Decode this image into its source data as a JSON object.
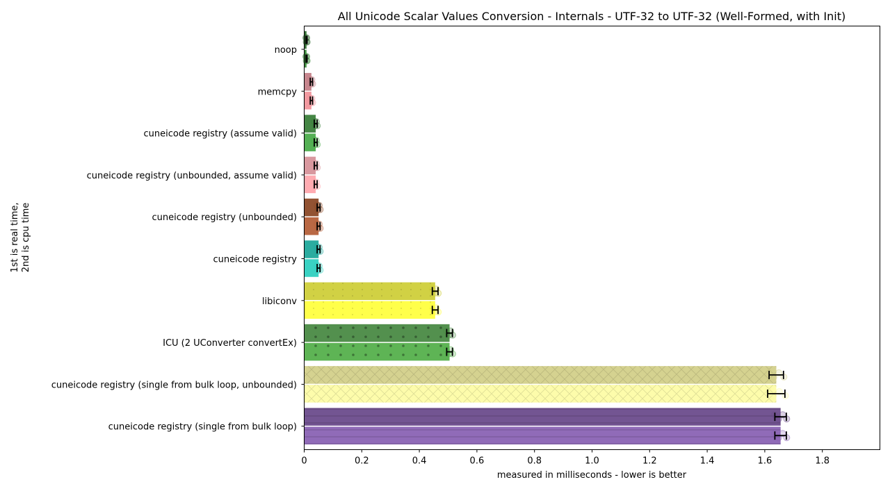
{
  "chart_data": {
    "type": "bar",
    "orientation": "horizontal",
    "title": "All Unicode Scalar Values Conversion - Internals - UTF-32 to UTF-32 (Well-Formed, with Init)",
    "xlabel": "measured in milliseconds - lower is better",
    "ylabel_line1": "1st is real time,",
    "ylabel_line2": "2nd is cpu time",
    "xlim": [
      0,
      2.0
    ],
    "xticks": [
      "0",
      "0.2",
      "0.4",
      "0.6",
      "0.8",
      "1.0",
      "1.2",
      "1.4",
      "1.6",
      "1.8"
    ],
    "grid": false,
    "series": [
      {
        "name": "real time",
        "values": [
          0.008,
          0.025,
          0.04,
          0.04,
          0.05,
          0.05,
          0.455,
          0.505,
          1.64,
          1.655
        ],
        "errors": [
          0.002,
          0.004,
          0.005,
          0.005,
          0.005,
          0.005,
          0.01,
          0.01,
          0.025,
          0.02
        ]
      },
      {
        "name": "cpu time",
        "values": [
          0.008,
          0.025,
          0.04,
          0.04,
          0.05,
          0.05,
          0.455,
          0.505,
          1.64,
          1.655
        ],
        "errors": [
          0.002,
          0.004,
          0.005,
          0.005,
          0.005,
          0.005,
          0.01,
          0.01,
          0.03,
          0.02
        ]
      }
    ],
    "categories": [
      {
        "label": "noop",
        "colors": [
          "#2e6b2e",
          "#3a8a3a"
        ],
        "hatch": "none"
      },
      {
        "label": "memcpy",
        "colors": [
          "#c47f88",
          "#f0939b"
        ],
        "hatch": "none"
      },
      {
        "label": "cuneicode registry (assume valid)",
        "colors": [
          "#3b7f3b",
          "#4cac4c"
        ],
        "hatch": "none"
      },
      {
        "label": "cuneicode registry (unbounded, assume valid)",
        "colors": [
          "#d7929a",
          "#ffa6ad"
        ],
        "hatch": "none"
      },
      {
        "label": "cuneicode registry (unbounded)",
        "colors": [
          "#8c4a28",
          "#b5603a"
        ],
        "hatch": "none"
      },
      {
        "label": "cuneicode registry",
        "colors": [
          "#20a89b",
          "#2fd0c0"
        ],
        "hatch": "none"
      },
      {
        "label": "libiconv",
        "colors": [
          "#cfcf3a",
          "#ffff40"
        ],
        "hatch": "dots-sparse"
      },
      {
        "label": "ICU (2 UConverter convertEx)",
        "colors": [
          "#4a8a44",
          "#55b04c"
        ],
        "hatch": "dots"
      },
      {
        "label": "cuneicode registry (single from bulk loop, unbounded)",
        "colors": [
          "#d3d08a",
          "#fdfca6"
        ],
        "hatch": "cross"
      },
      {
        "label": "cuneicode registry (single from bulk loop)",
        "colors": [
          "#6b4c8c",
          "#8a63b4"
        ],
        "hatch": "lines"
      }
    ]
  }
}
